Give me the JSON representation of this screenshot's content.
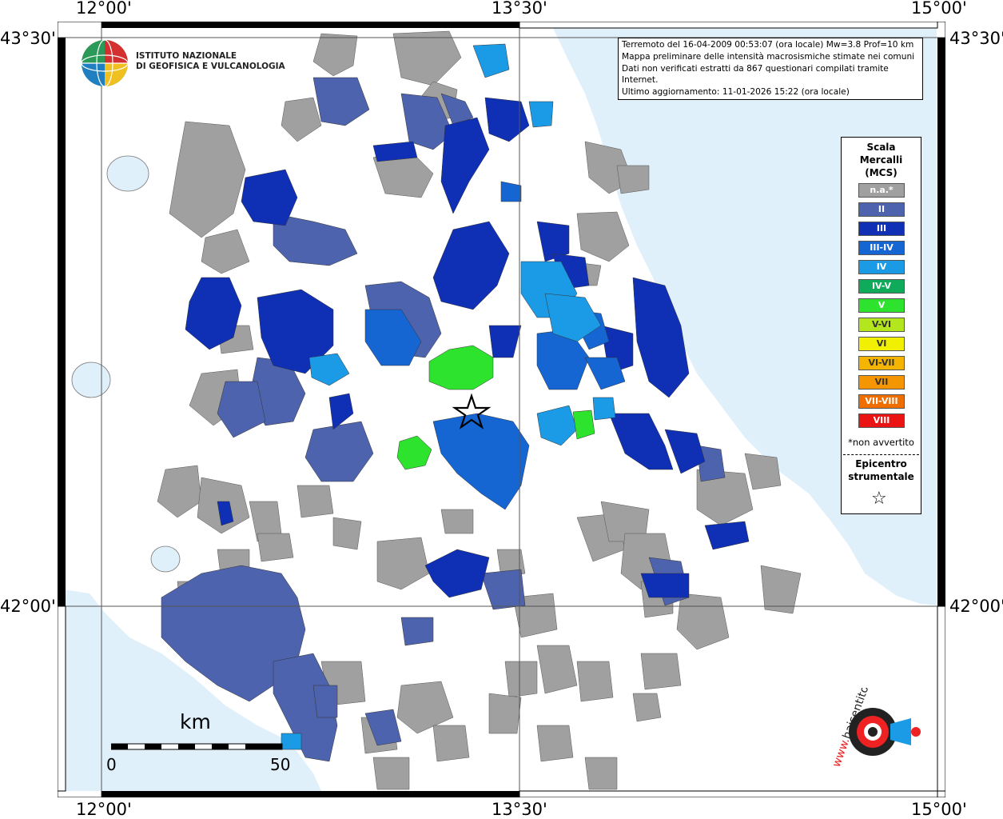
{
  "coordinates": {
    "top": [
      "12°00'",
      "13°30'",
      "15°00'"
    ],
    "bottom": [
      "12°00'",
      "13°30'",
      "15°00'"
    ],
    "left": [
      "43°30'",
      "42°00'"
    ],
    "right": [
      "43°30'",
      "42°00'"
    ]
  },
  "info": {
    "line1": "Terremoto del 16-04-2009 00:53:07 (ora locale) Mw=3.8 Prof=10 km",
    "line2": "Mappa preliminare delle intensità macrosismiche stimate nei comuni",
    "line3": "Dati non verificati estratti da 867 questionari compilati tramite Internet.",
    "line4": "Ultimo aggiornamento: 11-01-2026 15:22 (ora locale)"
  },
  "institute": {
    "line1": "ISTITUTO NAZIONALE",
    "line2": "DI GEOFISICA E VULCANOLOGIA"
  },
  "legend": {
    "title1": "Scala",
    "title2": "Mercalli",
    "title3": "(MCS)",
    "items": [
      {
        "label": "n.a.*",
        "color": "#a0a0a0"
      },
      {
        "label": "II",
        "color": "#4e63ad"
      },
      {
        "label": "III",
        "color": "#0f2fb4"
      },
      {
        "label": "III-IV",
        "color": "#1566d2"
      },
      {
        "label": "IV",
        "color": "#1b9be6"
      },
      {
        "label": "IV-V",
        "color": "#0faa5a"
      },
      {
        "label": "V",
        "color": "#2ee32e"
      },
      {
        "label": "V-VI",
        "color": "#b4e61e"
      },
      {
        "label": "VI",
        "color": "#f0f000"
      },
      {
        "label": "VI-VII",
        "color": "#f5b400"
      },
      {
        "label": "VII",
        "color": "#f59600"
      },
      {
        "label": "VII-VIII",
        "color": "#f06e00"
      },
      {
        "label": "VIII",
        "color": "#eb1414"
      }
    ],
    "note": "*non avvertito",
    "epicenter1": "Epicentro",
    "epicenter2": "strumentale"
  },
  "scalebar": {
    "unit": "km",
    "min": "0",
    "max": "50"
  },
  "colors": {
    "sea": "#dff0fb",
    "na": "#a0a0a0",
    "II": "#4e63ad",
    "III": "#0f2fb4",
    "III_IV": "#1566d2",
    "IV": "#1b9be6",
    "V": "#2ee32e"
  },
  "site_logo": {
    "text": "haisentitoilterremoto.it",
    "prefix": "www."
  }
}
